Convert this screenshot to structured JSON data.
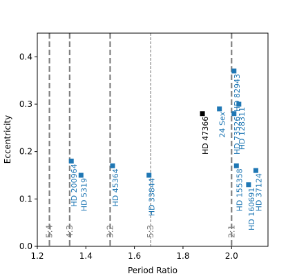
{
  "chart_data": {
    "type": "scatter",
    "title": "",
    "xlabel": "Period Ratio",
    "ylabel": "Eccentricity",
    "xlim": [
      1.2,
      2.15
    ],
    "ylim": [
      0.0,
      0.45
    ],
    "xticks": [
      {
        "value": 1.2,
        "label": "1.2"
      },
      {
        "value": 1.4,
        "label": "1.4"
      },
      {
        "value": 1.6,
        "label": "1.6"
      },
      {
        "value": 1.8,
        "label": "1.8"
      },
      {
        "value": 2.0,
        "label": "2.0"
      }
    ],
    "yticks": [
      {
        "value": 0.0,
        "label": "0.0"
      },
      {
        "value": 0.1,
        "label": "0.1"
      },
      {
        "value": 0.2,
        "label": "0.2"
      },
      {
        "value": 0.3,
        "label": "0.3"
      },
      {
        "value": 0.4,
        "label": "0.4"
      }
    ],
    "grid": false,
    "resonances": [
      {
        "x": 1.25,
        "label": "5:4",
        "style": "dashed-thick",
        "top": 0.45
      },
      {
        "x": 1.3333,
        "label": "4:3",
        "style": "dashed-thick",
        "top": 0.45
      },
      {
        "x": 1.5,
        "label": "3:2",
        "style": "dashed-thick",
        "top": 0.45
      },
      {
        "x": 1.6667,
        "label": "5:3",
        "style": "dashed-thin",
        "top": 0.45
      },
      {
        "x": 2.0,
        "label": "2:1",
        "style": "dashed-thick",
        "top": 0.45
      }
    ],
    "points": [
      {
        "name": "HD 200964",
        "x": 1.34,
        "y": 0.18,
        "color": "#1f77b4"
      },
      {
        "name": "HD 5319",
        "x": 1.38,
        "y": 0.15,
        "color": "#1f77b4"
      },
      {
        "name": "HD 45364",
        "x": 1.51,
        "y": 0.17,
        "color": "#1f77b4"
      },
      {
        "name": "HD 33844",
        "x": 1.66,
        "y": 0.15,
        "color": "#1f77b4"
      },
      {
        "name": "HD 47366",
        "x": 1.88,
        "y": 0.28,
        "color": "#000000"
      },
      {
        "name": "24 Sex",
        "x": 1.95,
        "y": 0.29,
        "color": "#1f77b4"
      },
      {
        "name": "HD 82943",
        "x": 2.01,
        "y": 0.37,
        "color": "#1f77b4"
      },
      {
        "name": "HD 73526",
        "x": 2.01,
        "y": 0.28,
        "color": "#1f77b4"
      },
      {
        "name": "HD 128311",
        "x": 2.03,
        "y": 0.3,
        "color": "#1f77b4"
      },
      {
        "name": "HD 155358",
        "x": 2.02,
        "y": 0.17,
        "color": "#1f77b4"
      },
      {
        "name": "HD 160691",
        "x": 2.07,
        "y": 0.13,
        "color": "#1f77b4"
      },
      {
        "name": "HD 37124",
        "x": 2.1,
        "y": 0.16,
        "color": "#1f77b4"
      }
    ]
  }
}
